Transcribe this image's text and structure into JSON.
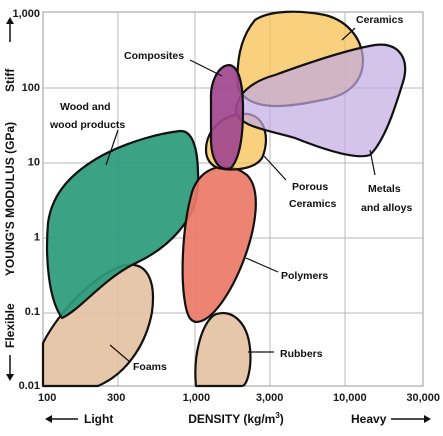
{
  "chart_data": {
    "type": "scatter",
    "title": "",
    "xlabel": "DENSITY (kg/m",
    "xlabel_superscript": "3",
    "xlabel_suffix": ")",
    "ylabel": "YOUNG'S MODULUS (GPa)",
    "x_scale": "log",
    "y_scale": "log",
    "xlim": [
      100,
      30000
    ],
    "ylim": [
      0.01,
      1000
    ],
    "grid": true,
    "x_ticks": [
      "100",
      "300",
      "1,000",
      "3,000",
      "10,000",
      "30,000"
    ],
    "y_ticks": [
      "0.01",
      "0.1",
      "1",
      "10",
      "100",
      "1,000"
    ],
    "x_ends": {
      "left": "Light",
      "right": "Heavy"
    },
    "y_ends": {
      "bottom": "Flexible",
      "top": "Stiff"
    },
    "series": [
      {
        "name": "Foams",
        "color": "#e4c2a2",
        "density_range": [
          100,
          1000
        ],
        "modulus_range": [
          0.01,
          1
        ]
      },
      {
        "name": "Wood and wood products",
        "color": "#2a9a7a",
        "density_range": [
          120,
          1100
        ],
        "modulus_range": [
          0.08,
          25
        ]
      },
      {
        "name": "Rubbers",
        "color": "#e4c2a2",
        "density_range": [
          1000,
          2200
        ],
        "modulus_range": [
          0.01,
          0.1
        ]
      },
      {
        "name": "Polymers",
        "color": "#ec7866",
        "density_range": [
          900,
          2200
        ],
        "modulus_range": [
          0.1,
          10
        ]
      },
      {
        "name": "Porous Ceramics",
        "color": "#f7c052",
        "density_range": [
          1100,
          2200
        ],
        "modulus_range": [
          6,
          30
        ]
      },
      {
        "name": "Ceramics",
        "color": "#f7c052",
        "density_range": [
          1700,
          15000
        ],
        "modulus_range": [
          20,
          1000
        ]
      },
      {
        "name": "Metals and alloys",
        "color": "#c2aae2",
        "density_range": [
          1700,
          23000
        ],
        "modulus_range": [
          10,
          400
        ]
      },
      {
        "name": "Composites",
        "color": "#a0478e",
        "density_range": [
          1400,
          2200
        ],
        "modulus_range": [
          7,
          200
        ]
      }
    ]
  }
}
